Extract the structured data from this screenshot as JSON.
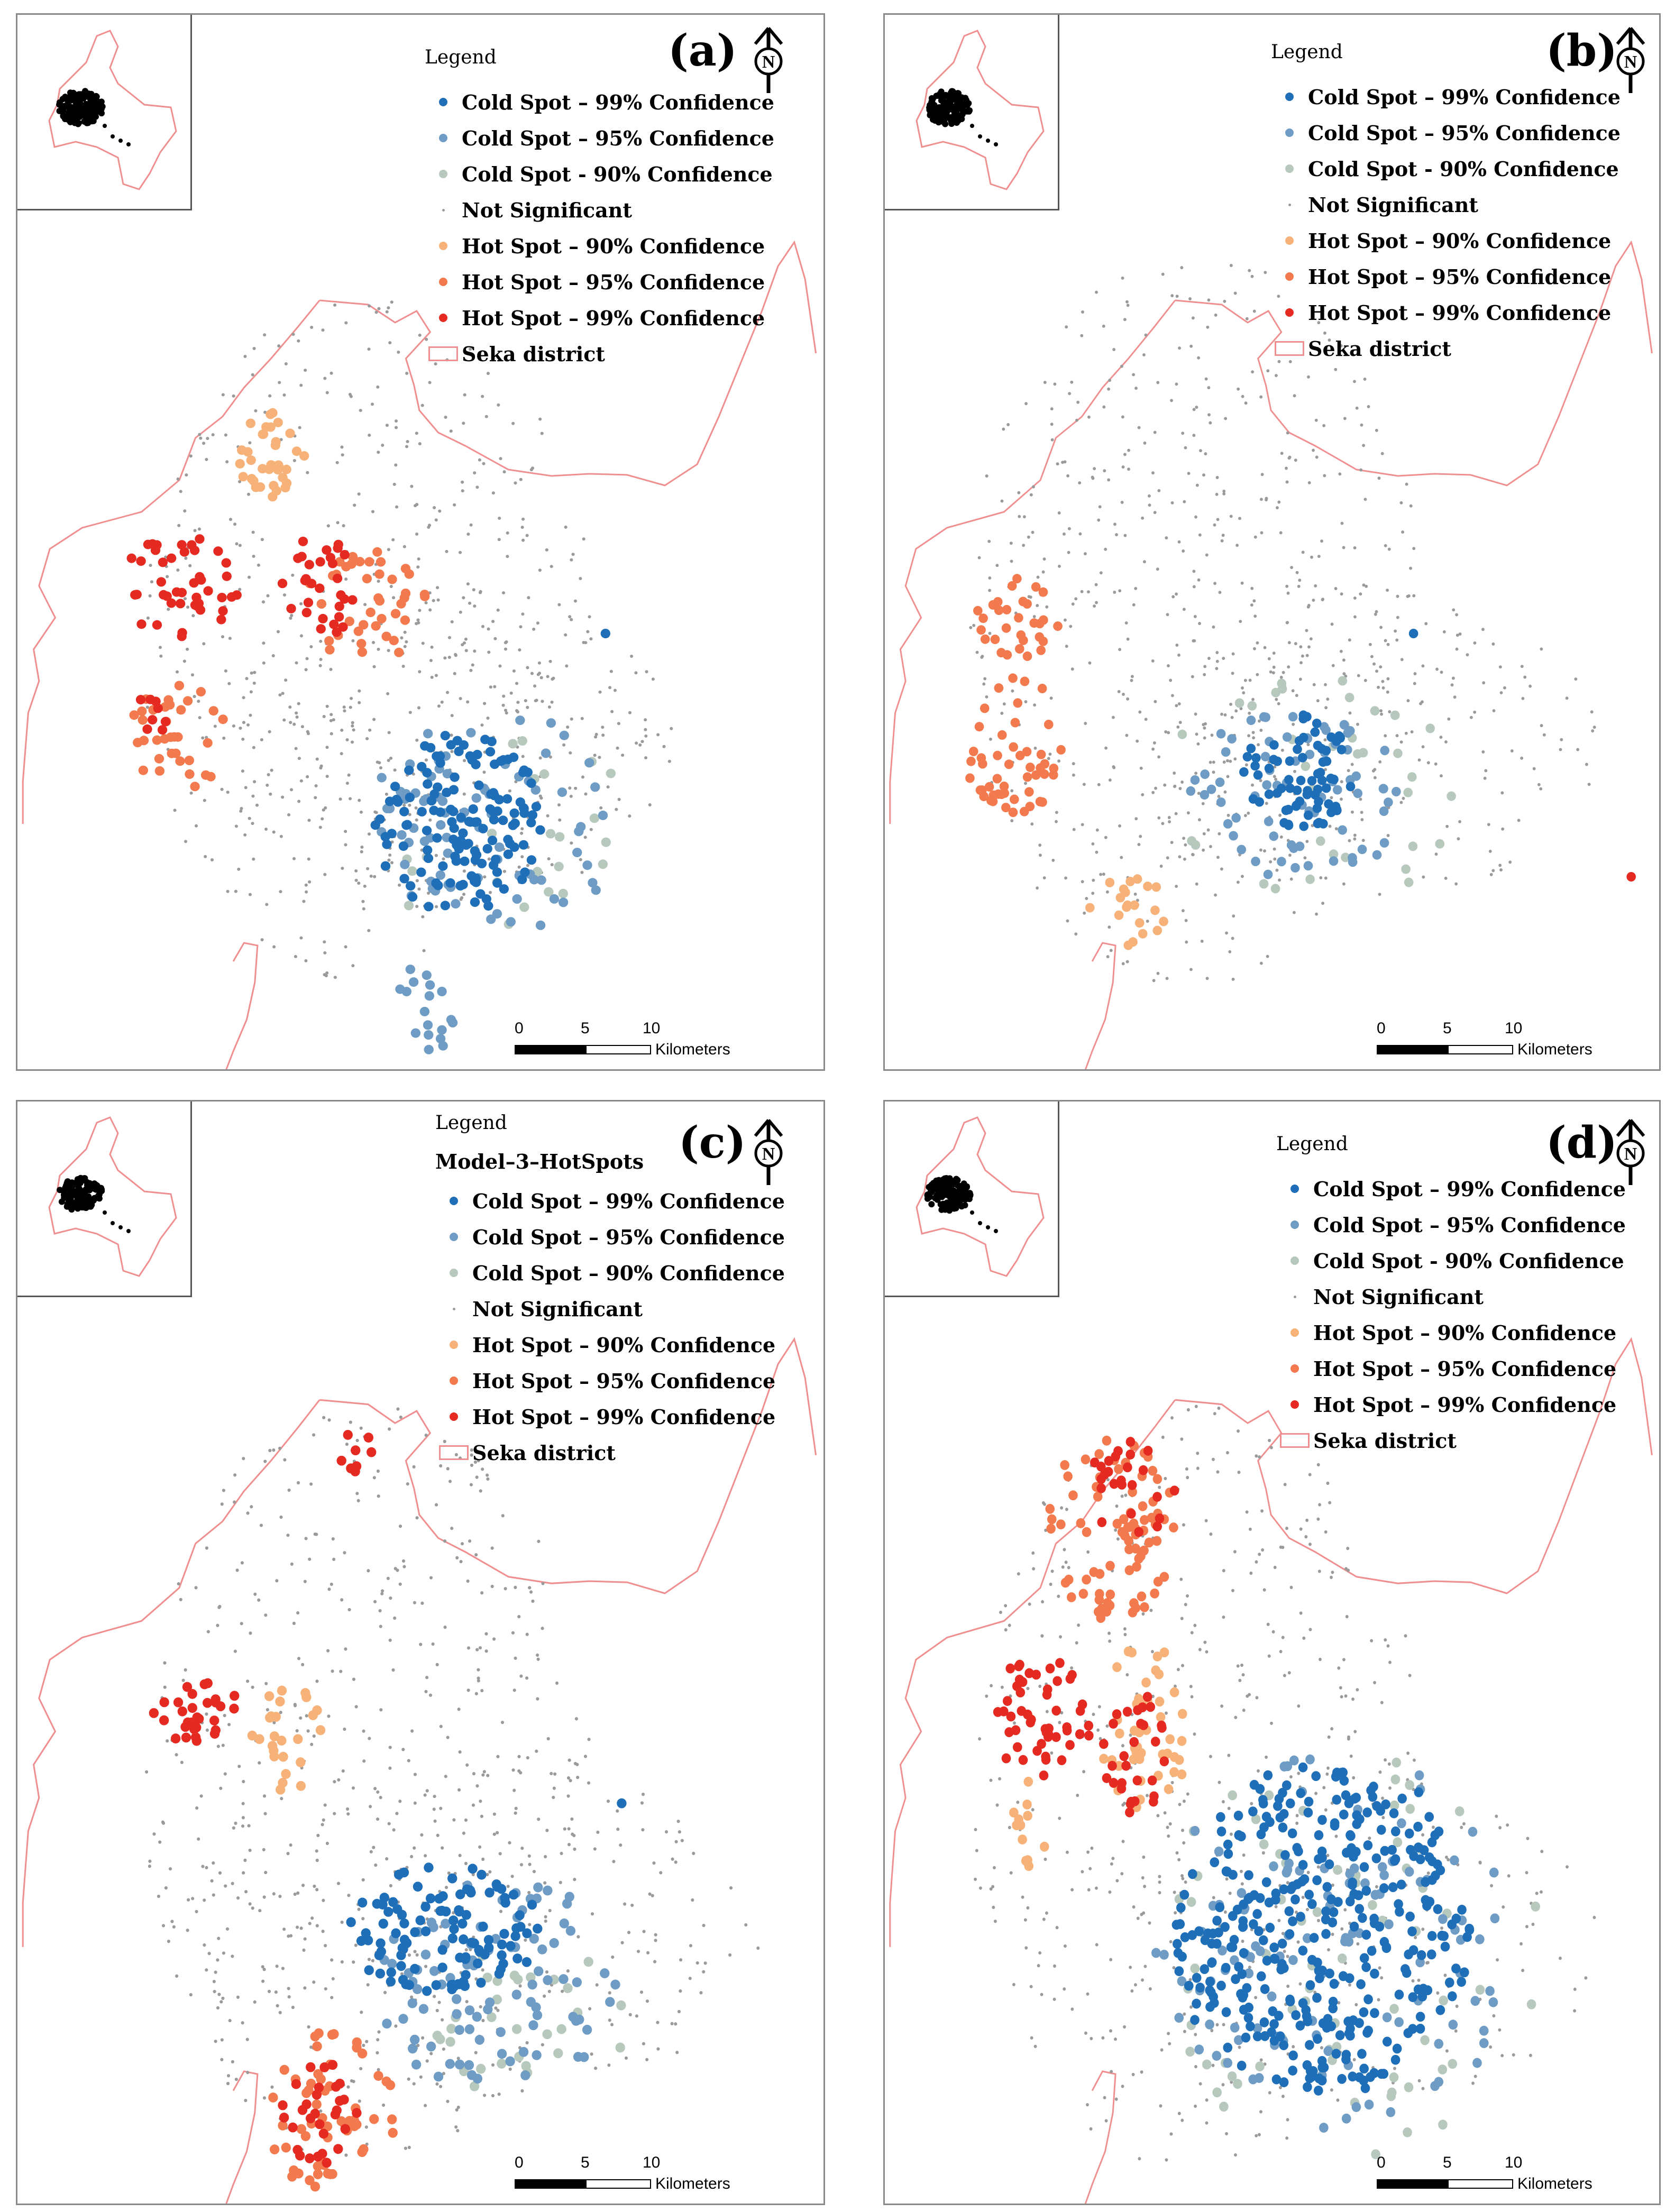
{
  "colors": {
    "cold99": "#1f6fb8",
    "cold95": "#6f9cc4",
    "cold90": "#b7c9bd",
    "notsig": "#9a9a9a",
    "hot90": "#f7b27a",
    "hot95": "#f27a4e",
    "hot99": "#e52a22",
    "district": "#ef8f8f"
  },
  "legend": {
    "title": "Legend",
    "items": [
      {
        "key": "cold99",
        "label": "Cold Spot – 99% Confidence",
        "kind": "dot"
      },
      {
        "key": "cold95",
        "label": "Cold Spot – 95% Confidence",
        "kind": "dot"
      },
      {
        "key": "cold90",
        "label": "Cold Spot - 90% Confidence",
        "kind": "dot"
      },
      {
        "key": "notsig",
        "label": "Not Significant",
        "kind": "tiny"
      },
      {
        "key": "hot90",
        "label": "Hot Spot – 90% Confidence",
        "kind": "dot"
      },
      {
        "key": "hot95",
        "label": "Hot Spot – 95% Confidence",
        "kind": "dot"
      },
      {
        "key": "hot99",
        "label": "Hot Spot – 99% Confidence",
        "kind": "dot"
      },
      {
        "key": "district",
        "label": "Seka district",
        "kind": "box"
      }
    ],
    "items_c": [
      {
        "key": "cold99",
        "label": "Cold Spot – 99% Confidence",
        "kind": "dot"
      },
      {
        "key": "cold95",
        "label": "Cold Spot – 95% Confidence",
        "kind": "dot"
      },
      {
        "key": "cold90",
        "label": "Cold Spot – 90% Confidence",
        "kind": "dot"
      },
      {
        "key": "notsig",
        "label": "Not Significant",
        "kind": "tiny"
      },
      {
        "key": "hot90",
        "label": "Hot Spot – 90% Confidence",
        "kind": "dot"
      },
      {
        "key": "hot95",
        "label": "Hot Spot – 95% Confidence",
        "kind": "dot"
      },
      {
        "key": "hot99",
        "label": "Hot Spot – 99% Confidence",
        "kind": "dot"
      },
      {
        "key": "district",
        "label": "Seka district",
        "kind": "box"
      }
    ],
    "subtitle_c": "Model–3–HotSpots"
  },
  "north_letter": "N",
  "scale": {
    "ticks": [
      "0",
      "5",
      "10"
    ],
    "unit": "Kilometers"
  },
  "panels": [
    {
      "label": "(a)"
    },
    {
      "label": "(b)"
    },
    {
      "label": "(c)"
    },
    {
      "label": "(d)"
    }
  ]
}
